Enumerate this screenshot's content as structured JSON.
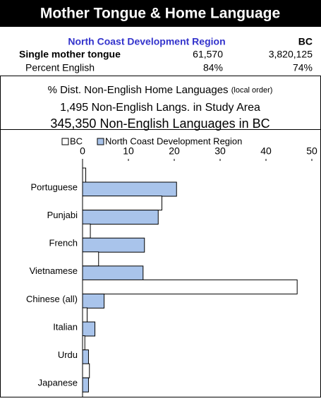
{
  "header": {
    "title": "Mother Tongue & Home Language"
  },
  "table": {
    "columns": [
      "North Coast Development Region",
      "BC"
    ],
    "rows": [
      [
        "Single mother tongue",
        "61,570",
        "3,820,125"
      ],
      [
        "Percent English",
        "84%",
        "74%"
      ]
    ]
  },
  "summary": {
    "heading": "% Dist. Non-English Home Languages",
    "heading_note": "(local order)",
    "lines": [
      "1,495 Non-English Langs. in Study Area",
      "345,350 Non-English Languages in BC"
    ]
  },
  "chart_data": {
    "type": "bar",
    "orientation": "horizontal",
    "categories": [
      "Portuguese",
      "Punjabi",
      "French",
      "Vietnamese",
      "Chinese (all)",
      "Italian",
      "Urdu",
      "Japanese"
    ],
    "series": [
      {
        "name": "BC",
        "color": "#ffffff",
        "values": [
          0.7,
          17.3,
          1.7,
          3.5,
          46.8,
          1.0,
          0.5,
          1.5
        ]
      },
      {
        "name": "North Coast Development Region",
        "color": "#a9c4eb",
        "values": [
          20.5,
          16.5,
          13.5,
          13.2,
          4.7,
          2.7,
          1.3,
          1.3
        ]
      }
    ],
    "xlim": [
      0,
      50
    ],
    "xticks": [
      0,
      10,
      20,
      30,
      40,
      50
    ],
    "legend": "top"
  }
}
